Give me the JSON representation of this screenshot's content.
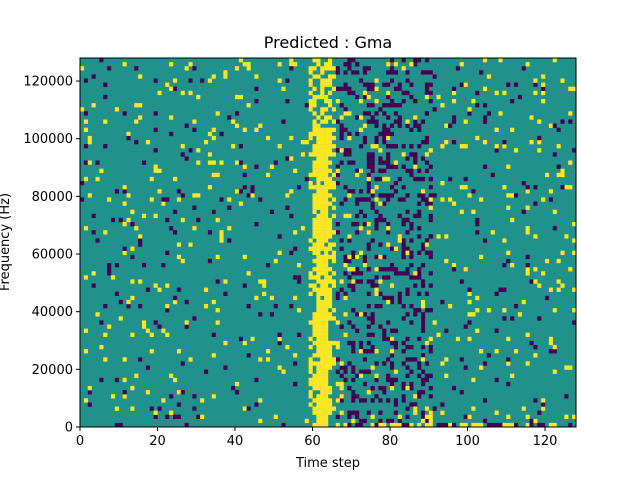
{
  "chart_data": {
    "type": "heatmap",
    "title": "Predicted : Gma",
    "xlabel": "Time step",
    "ylabel": "Frequency (Hz)",
    "xlim": [
      0,
      128
    ],
    "ylim": [
      0,
      128000
    ],
    "x_ticks": [
      0,
      20,
      40,
      60,
      80,
      100,
      120
    ],
    "y_ticks": [
      0,
      20000,
      40000,
      60000,
      80000,
      100000,
      120000
    ],
    "x_tick_labels": [
      "0",
      "20",
      "40",
      "60",
      "80",
      "100",
      "120"
    ],
    "y_tick_labels": [
      "0",
      "20000",
      "40000",
      "60000",
      "80000",
      "100000",
      "120000"
    ],
    "colors": {
      "background": "#21918c",
      "low": "#440154",
      "high": "#fde725"
    },
    "grid": false,
    "legend": "none",
    "n_bins_y": 90,
    "highlight_band": {
      "x_start": 59,
      "x_end": 65,
      "level": "high"
    },
    "dark_band": {
      "x_start": 66,
      "x_end": 90,
      "level": "low"
    },
    "scattered_cells": [
      [
        1,
        6,
        "high"
      ],
      [
        1,
        18,
        "high"
      ],
      [
        1,
        36,
        "high"
      ],
      [
        1,
        60,
        "high"
      ],
      [
        2,
        56,
        "high"
      ],
      [
        2,
        64,
        "high"
      ],
      [
        2,
        70,
        "high"
      ],
      [
        3,
        85,
        "low"
      ],
      [
        5,
        62,
        "high"
      ],
      [
        6,
        74,
        "high"
      ],
      [
        7,
        24,
        "high"
      ],
      [
        11,
        8,
        "low"
      ],
      [
        12,
        70,
        "low"
      ],
      [
        13,
        35,
        "high"
      ],
      [
        15,
        44,
        "low"
      ],
      [
        17,
        23,
        "high"
      ],
      [
        18,
        60,
        "high"
      ],
      [
        19,
        3,
        "high"
      ],
      [
        20,
        57,
        "high"
      ],
      [
        24,
        31,
        "low"
      ],
      [
        25,
        5,
        "low"
      ],
      [
        26,
        40,
        "high"
      ],
      [
        28,
        16,
        "high"
      ],
      [
        30,
        64,
        "high"
      ],
      [
        31,
        84,
        "low"
      ],
      [
        32,
        33,
        "high"
      ],
      [
        34,
        52,
        "low"
      ],
      [
        35,
        28,
        "high"
      ],
      [
        36,
        46,
        "high"
      ],
      [
        37,
        20,
        "high"
      ],
      [
        39,
        9,
        "low"
      ],
      [
        40,
        80,
        "high"
      ],
      [
        42,
        61,
        "low"
      ],
      [
        43,
        37,
        "high"
      ],
      [
        45,
        49,
        "low"
      ],
      [
        46,
        16,
        "high"
      ],
      [
        48,
        70,
        "high"
      ],
      [
        49,
        27,
        "low"
      ],
      [
        51,
        42,
        "high"
      ],
      [
        53,
        56,
        "high"
      ],
      [
        54,
        87,
        "low"
      ],
      [
        55,
        10,
        "low"
      ],
      [
        56,
        39,
        "high"
      ],
      [
        58,
        69,
        "high"
      ],
      [
        68,
        31,
        "high"
      ],
      [
        70,
        13,
        "low"
      ],
      [
        72,
        48,
        "high"
      ],
      [
        73,
        73,
        "high"
      ],
      [
        75,
        2,
        "high"
      ],
      [
        76,
        36,
        "low"
      ],
      [
        78,
        60,
        "high"
      ],
      [
        80,
        20,
        "low"
      ],
      [
        82,
        45,
        "high"
      ],
      [
        84,
        9,
        "high"
      ],
      [
        86,
        66,
        "low"
      ],
      [
        88,
        29,
        "high"
      ],
      [
        90,
        50,
        "low"
      ],
      [
        92,
        80,
        "high"
      ],
      [
        94,
        12,
        "high"
      ],
      [
        96,
        38,
        "low"
      ],
      [
        98,
        58,
        "high"
      ],
      [
        100,
        25,
        "low"
      ],
      [
        102,
        70,
        "high"
      ],
      [
        104,
        6,
        "low"
      ],
      [
        106,
        47,
        "high"
      ],
      [
        108,
        33,
        "low"
      ],
      [
        110,
        63,
        "high"
      ],
      [
        112,
        18,
        "high"
      ],
      [
        114,
        52,
        "low"
      ],
      [
        116,
        75,
        "high"
      ],
      [
        118,
        3,
        "low"
      ],
      [
        120,
        40,
        "high"
      ],
      [
        122,
        28,
        "high"
      ],
      [
        124,
        58,
        "low"
      ],
      [
        126,
        14,
        "high"
      ],
      [
        127,
        82,
        "high"
      ],
      [
        125,
        2,
        "high"
      ],
      [
        110,
        2,
        "high"
      ],
      [
        100,
        2,
        "high"
      ],
      [
        90,
        2,
        "high"
      ],
      [
        86,
        4,
        "high"
      ],
      [
        97,
        87,
        "low"
      ],
      [
        83,
        87,
        "high"
      ],
      [
        44,
        56,
        "high"
      ]
    ]
  }
}
